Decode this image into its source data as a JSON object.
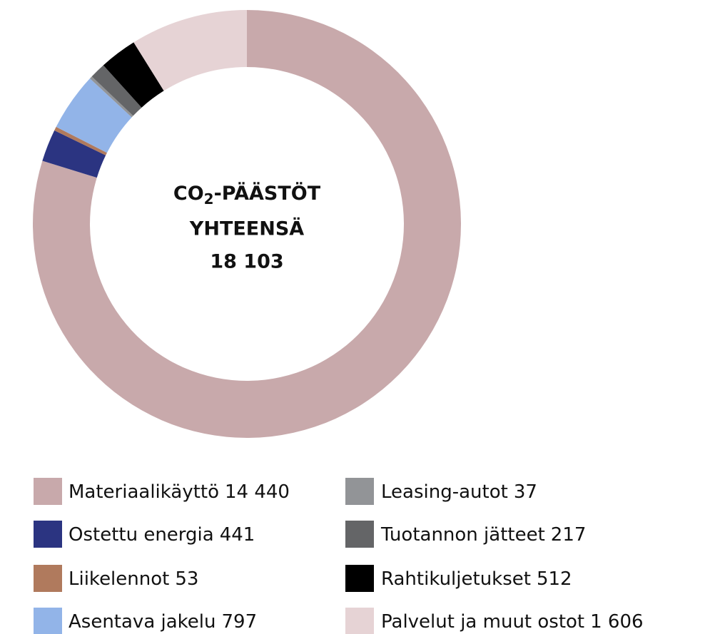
{
  "chart_data": {
    "type": "donut",
    "title_parts": [
      "CO",
      "2",
      "-PÄÄSTÖT"
    ],
    "title_line2": "YHTEENSÄ",
    "total": {
      "value": 18103,
      "label": "18 103"
    },
    "categories": [
      "Materiaalikäyttö",
      "Ostettu energia",
      "Liikelennot",
      "Asentava jakelu",
      "Leasing-autot",
      "Tuotannon jätteet",
      "Rahtikuljetukset",
      "Palvelut ja muut ostot"
    ],
    "values": [
      14440,
      441,
      53,
      797,
      37,
      217,
      512,
      1606
    ],
    "value_labels": [
      "14 440",
      "441",
      "53",
      "797",
      "37",
      "217",
      "512",
      "1 606"
    ],
    "colors": [
      "#c8a9ab",
      "#2b3481",
      "#b07a5d",
      "#92b4e8",
      "#929497",
      "#646567",
      "#000000",
      "#e6d3d5"
    ]
  }
}
